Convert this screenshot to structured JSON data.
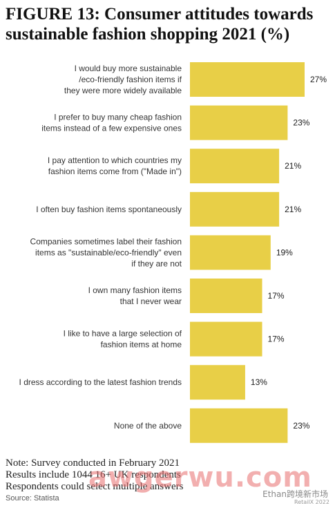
{
  "title_lines": [
    "FIGURE 13: Consumer attitudes towards",
    "sustainable fashion shopping 2021 (%)"
  ],
  "chart_data": {
    "type": "bar",
    "orientation": "horizontal",
    "title": "FIGURE 13: Consumer attitudes towards sustainable fashion shopping 2021 (%)",
    "categories": [
      [
        "I would buy more sustainable",
        "/eco-friendly fashion items if",
        "they were more widely available"
      ],
      [
        "I prefer to buy many cheap fashion",
        "items instead of a few expensive ones"
      ],
      [
        "I pay attention to which countries my",
        "fashion items come from (\"Made in\")"
      ],
      [
        "I often buy fashion items spontaneously"
      ],
      [
        "Companies sometimes label their fashion",
        "items as \"sustainable/eco-friendly\" even",
        "if they are not"
      ],
      [
        "I own many fashion items",
        "that I never wear"
      ],
      [
        "I like to have a large selection of",
        "fashion items at home"
      ],
      [
        "I dress according to the latest fashion trends"
      ],
      [
        "None of the above"
      ]
    ],
    "values": [
      27,
      23,
      21,
      21,
      19,
      17,
      17,
      13,
      23
    ],
    "value_labels": [
      "27%",
      "23%",
      "21%",
      "21%",
      "19%",
      "17%",
      "17%",
      "13%",
      "23%"
    ],
    "unit": "%",
    "xlim": [
      0,
      27
    ],
    "grid": false,
    "legend": "none",
    "bar_color": "#e8cf47"
  },
  "notes": [
    "Note: Survey conducted in February 2021",
    "Results include 1044 16+ UK respondents",
    "Respondents could select multiple answers"
  ],
  "source": "Source: Statista",
  "watermark": "awgerwu.com",
  "watermark_side": "Ethan跨境新市场",
  "brand": "RetailX 2022"
}
